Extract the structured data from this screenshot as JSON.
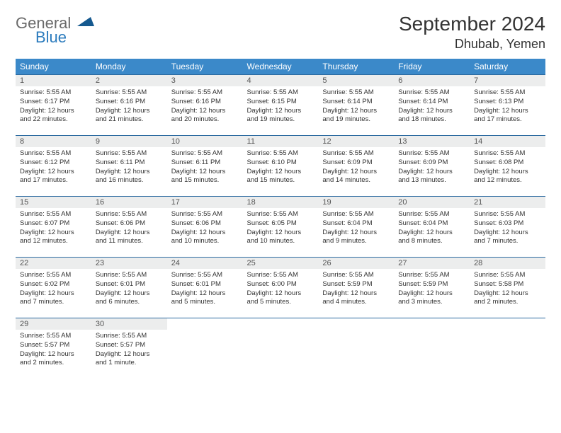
{
  "logo": {
    "word1": "General",
    "word2": "Blue",
    "tri_color": "#15598f"
  },
  "title": "September 2024",
  "location": "Dhubab, Yemen",
  "colors": {
    "header_bg": "#3b89c9",
    "header_text": "#ffffff",
    "daynum_bg": "#eceded",
    "row_border": "#2b6aa0",
    "text": "#333333",
    "logo_gray": "#6a6a6a",
    "logo_blue": "#2b7bbd"
  },
  "weekdays": [
    "Sunday",
    "Monday",
    "Tuesday",
    "Wednesday",
    "Thursday",
    "Friday",
    "Saturday"
  ],
  "weeks": [
    [
      {
        "n": "1",
        "sr": "5:55 AM",
        "ss": "6:17 PM",
        "dl": "12 hours and 22 minutes."
      },
      {
        "n": "2",
        "sr": "5:55 AM",
        "ss": "6:16 PM",
        "dl": "12 hours and 21 minutes."
      },
      {
        "n": "3",
        "sr": "5:55 AM",
        "ss": "6:16 PM",
        "dl": "12 hours and 20 minutes."
      },
      {
        "n": "4",
        "sr": "5:55 AM",
        "ss": "6:15 PM",
        "dl": "12 hours and 19 minutes."
      },
      {
        "n": "5",
        "sr": "5:55 AM",
        "ss": "6:14 PM",
        "dl": "12 hours and 19 minutes."
      },
      {
        "n": "6",
        "sr": "5:55 AM",
        "ss": "6:14 PM",
        "dl": "12 hours and 18 minutes."
      },
      {
        "n": "7",
        "sr": "5:55 AM",
        "ss": "6:13 PM",
        "dl": "12 hours and 17 minutes."
      }
    ],
    [
      {
        "n": "8",
        "sr": "5:55 AM",
        "ss": "6:12 PM",
        "dl": "12 hours and 17 minutes."
      },
      {
        "n": "9",
        "sr": "5:55 AM",
        "ss": "6:11 PM",
        "dl": "12 hours and 16 minutes."
      },
      {
        "n": "10",
        "sr": "5:55 AM",
        "ss": "6:11 PM",
        "dl": "12 hours and 15 minutes."
      },
      {
        "n": "11",
        "sr": "5:55 AM",
        "ss": "6:10 PM",
        "dl": "12 hours and 15 minutes."
      },
      {
        "n": "12",
        "sr": "5:55 AM",
        "ss": "6:09 PM",
        "dl": "12 hours and 14 minutes."
      },
      {
        "n": "13",
        "sr": "5:55 AM",
        "ss": "6:09 PM",
        "dl": "12 hours and 13 minutes."
      },
      {
        "n": "14",
        "sr": "5:55 AM",
        "ss": "6:08 PM",
        "dl": "12 hours and 12 minutes."
      }
    ],
    [
      {
        "n": "15",
        "sr": "5:55 AM",
        "ss": "6:07 PM",
        "dl": "12 hours and 12 minutes."
      },
      {
        "n": "16",
        "sr": "5:55 AM",
        "ss": "6:06 PM",
        "dl": "12 hours and 11 minutes."
      },
      {
        "n": "17",
        "sr": "5:55 AM",
        "ss": "6:06 PM",
        "dl": "12 hours and 10 minutes."
      },
      {
        "n": "18",
        "sr": "5:55 AM",
        "ss": "6:05 PM",
        "dl": "12 hours and 10 minutes."
      },
      {
        "n": "19",
        "sr": "5:55 AM",
        "ss": "6:04 PM",
        "dl": "12 hours and 9 minutes."
      },
      {
        "n": "20",
        "sr": "5:55 AM",
        "ss": "6:04 PM",
        "dl": "12 hours and 8 minutes."
      },
      {
        "n": "21",
        "sr": "5:55 AM",
        "ss": "6:03 PM",
        "dl": "12 hours and 7 minutes."
      }
    ],
    [
      {
        "n": "22",
        "sr": "5:55 AM",
        "ss": "6:02 PM",
        "dl": "12 hours and 7 minutes."
      },
      {
        "n": "23",
        "sr": "5:55 AM",
        "ss": "6:01 PM",
        "dl": "12 hours and 6 minutes."
      },
      {
        "n": "24",
        "sr": "5:55 AM",
        "ss": "6:01 PM",
        "dl": "12 hours and 5 minutes."
      },
      {
        "n": "25",
        "sr": "5:55 AM",
        "ss": "6:00 PM",
        "dl": "12 hours and 5 minutes."
      },
      {
        "n": "26",
        "sr": "5:55 AM",
        "ss": "5:59 PM",
        "dl": "12 hours and 4 minutes."
      },
      {
        "n": "27",
        "sr": "5:55 AM",
        "ss": "5:59 PM",
        "dl": "12 hours and 3 minutes."
      },
      {
        "n": "28",
        "sr": "5:55 AM",
        "ss": "5:58 PM",
        "dl": "12 hours and 2 minutes."
      }
    ],
    [
      {
        "n": "29",
        "sr": "5:55 AM",
        "ss": "5:57 PM",
        "dl": "12 hours and 2 minutes."
      },
      {
        "n": "30",
        "sr": "5:55 AM",
        "ss": "5:57 PM",
        "dl": "12 hours and 1 minute."
      },
      null,
      null,
      null,
      null,
      null
    ]
  ],
  "labels": {
    "sunrise": "Sunrise:",
    "sunset": "Sunset:",
    "daylight": "Daylight:"
  }
}
